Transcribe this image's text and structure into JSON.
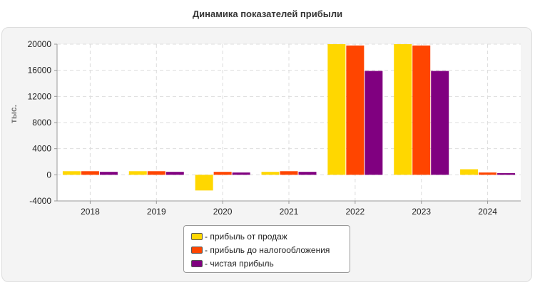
{
  "chart_data": {
    "type": "bar",
    "title": "Динамика показателей прибыли",
    "ylabel": "тыс.",
    "xlabel": "",
    "categories": [
      "2018",
      "2019",
      "2020",
      "2021",
      "2022",
      "2023",
      "2024"
    ],
    "ylim": [
      -4000,
      20000
    ],
    "yticks": [
      -4000,
      0,
      4000,
      8000,
      12000,
      16000,
      20000
    ],
    "grid": true,
    "legend_position": "bottom",
    "series": [
      {
        "name": "прибыль от продаж",
        "legend_label": "- прибыль от продаж",
        "color": "#FFD700",
        "values": [
          550,
          550,
          -2400,
          450,
          20000,
          20000,
          850
        ]
      },
      {
        "name": "прибыль до налогообложения",
        "legend_label": "- прибыль до налогообложения",
        "color": "#FF4500",
        "values": [
          550,
          550,
          450,
          550,
          19800,
          19800,
          350
        ]
      },
      {
        "name": "чистая прибыль",
        "legend_label": "- чистая прибыль",
        "color": "#800080",
        "values": [
          450,
          450,
          350,
          450,
          15900,
          15900,
          250
        ]
      }
    ]
  }
}
